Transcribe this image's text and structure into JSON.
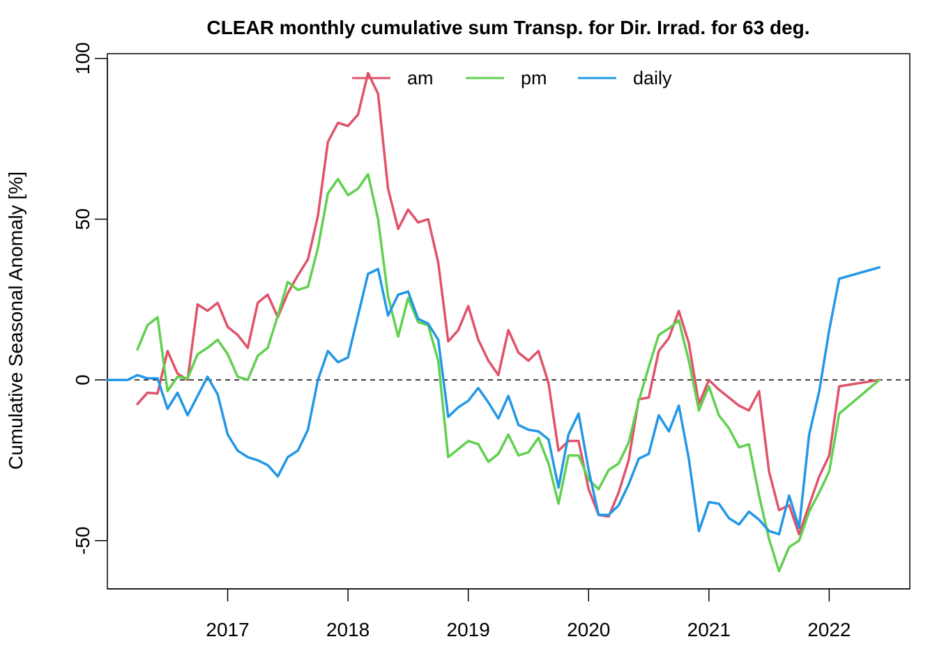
{
  "chart_data": {
    "type": "line",
    "title": "CLEAR monthly cumulative sum  Transp. for Dir. Irrad. for 63 deg.",
    "xlabel": "",
    "ylabel": "Cumulative Seasonal Anomaly [%]",
    "xlim": [
      2016.0,
      2022.67
    ],
    "ylim": [
      -65,
      101.5
    ],
    "x_ticks": [
      2017,
      2018,
      2019,
      2020,
      2021,
      2022
    ],
    "y_ticks": [
      -50,
      0,
      50,
      100
    ],
    "y_tick_labels": [
      "-50",
      "0",
      "50",
      "100"
    ],
    "reference_line": 0,
    "grid": false,
    "legend_position": "top",
    "series": [
      {
        "name": "am",
        "color": "#DF536B",
        "x": [
          2016.25,
          2016.333,
          2016.417,
          2016.5,
          2016.583,
          2016.667,
          2016.75,
          2016.833,
          2016.917,
          2017.0,
          2017.083,
          2017.167,
          2017.25,
          2017.333,
          2017.417,
          2017.5,
          2017.583,
          2017.667,
          2017.75,
          2017.833,
          2017.917,
          2018.0,
          2018.083,
          2018.167,
          2018.25,
          2018.333,
          2018.417,
          2018.5,
          2018.583,
          2018.667,
          2018.75,
          2018.833,
          2018.917,
          2019.0,
          2019.083,
          2019.167,
          2019.25,
          2019.333,
          2019.417,
          2019.5,
          2019.583,
          2019.667,
          2019.75,
          2019.833,
          2019.917,
          2020.0,
          2020.083,
          2020.167,
          2020.25,
          2020.333,
          2020.417,
          2020.5,
          2020.583,
          2020.667,
          2020.75,
          2020.833,
          2020.917,
          2021.0,
          2021.083,
          2021.167,
          2021.25,
          2021.333,
          2021.417,
          2021.5,
          2021.583,
          2021.667,
          2021.75,
          2021.833,
          2021.917,
          2022.0,
          2022.083,
          2022.417
        ],
        "y": [
          -7.5,
          -4,
          -4.2,
          9,
          2,
          0,
          23.5,
          21.5,
          24,
          16.5,
          14,
          10,
          24,
          26.5,
          19.5,
          27,
          32.5,
          37.5,
          51,
          74,
          80,
          79,
          82.5,
          95.5,
          89,
          59.5,
          47,
          53,
          49,
          50,
          36.5,
          12,
          15.5,
          23,
          12.5,
          6,
          1.5,
          15.5,
          8.5,
          6,
          9,
          -1,
          -22,
          -19,
          -19,
          -34,
          -42,
          -42.5,
          -35,
          -25,
          -6,
          -5.5,
          9,
          13,
          21.5,
          11.5,
          -7.5,
          0,
          -3,
          -5.5,
          -8,
          -9.5,
          -3.5,
          -28.5,
          -40.5,
          -39,
          -48,
          -39,
          -30,
          -23.5,
          -2,
          0
        ]
      },
      {
        "name": "pm",
        "color": "#61D04F",
        "x": [
          2016.25,
          2016.333,
          2016.417,
          2016.5,
          2016.583,
          2016.667,
          2016.75,
          2016.833,
          2016.917,
          2017.0,
          2017.083,
          2017.167,
          2017.25,
          2017.333,
          2017.417,
          2017.5,
          2017.583,
          2017.667,
          2017.75,
          2017.833,
          2017.917,
          2018.0,
          2018.083,
          2018.167,
          2018.25,
          2018.333,
          2018.417,
          2018.5,
          2018.583,
          2018.667,
          2018.75,
          2018.833,
          2018.917,
          2019.0,
          2019.083,
          2019.167,
          2019.25,
          2019.333,
          2019.417,
          2019.5,
          2019.583,
          2019.667,
          2019.75,
          2019.833,
          2019.917,
          2020.0,
          2020.083,
          2020.167,
          2020.25,
          2020.333,
          2020.417,
          2020.5,
          2020.583,
          2020.667,
          2020.75,
          2020.833,
          2020.917,
          2021.0,
          2021.083,
          2021.167,
          2021.25,
          2021.333,
          2021.417,
          2021.5,
          2021.583,
          2021.667,
          2021.75,
          2021.833,
          2021.917,
          2022.0,
          2022.083,
          2022.417
        ],
        "y": [
          9.5,
          17,
          19.5,
          -3.5,
          1,
          0.5,
          8,
          10,
          12.5,
          8,
          1,
          0,
          7.5,
          10,
          20,
          30.5,
          28,
          29,
          41,
          58,
          62.5,
          57.5,
          59.5,
          64,
          50,
          26,
          13.5,
          25.5,
          18,
          17,
          6,
          -24,
          -21.5,
          -19,
          -20,
          -25.5,
          -23,
          -17,
          -23.5,
          -22.5,
          -18,
          -26,
          -38.5,
          -23.5,
          -23.5,
          -31,
          -34,
          -28,
          -26,
          -19.5,
          -6.5,
          4,
          14,
          16,
          18.5,
          6,
          -9.5,
          -2,
          -11,
          -15,
          -21,
          -20,
          -36,
          -49.5,
          -59.5,
          -52,
          -50,
          -41,
          -35,
          -28.5,
          -10.5,
          0
        ]
      },
      {
        "name": "daily",
        "color": "#2297E6",
        "x": [
          2016.0,
          2016.083,
          2016.167,
          2016.25,
          2016.333,
          2016.417,
          2016.5,
          2016.583,
          2016.667,
          2016.75,
          2016.833,
          2016.917,
          2017.0,
          2017.083,
          2017.167,
          2017.25,
          2017.333,
          2017.417,
          2017.5,
          2017.583,
          2017.667,
          2017.75,
          2017.833,
          2017.917,
          2018.0,
          2018.083,
          2018.167,
          2018.25,
          2018.333,
          2018.417,
          2018.5,
          2018.583,
          2018.667,
          2018.75,
          2018.833,
          2018.917,
          2019.0,
          2019.083,
          2019.167,
          2019.25,
          2019.333,
          2019.417,
          2019.5,
          2019.583,
          2019.667,
          2019.75,
          2019.833,
          2019.917,
          2020.0,
          2020.083,
          2020.167,
          2020.25,
          2020.333,
          2020.417,
          2020.5,
          2020.583,
          2020.667,
          2020.75,
          2020.833,
          2020.917,
          2021.0,
          2021.083,
          2021.167,
          2021.25,
          2021.333,
          2021.417,
          2021.5,
          2021.583,
          2021.667,
          2021.75,
          2021.833,
          2021.917,
          2022.0,
          2022.083,
          2022.417
        ],
        "y": [
          0,
          0,
          0,
          1.5,
          0.5,
          0.5,
          -9,
          -4,
          -11,
          -5,
          1,
          -4.5,
          -17,
          -22,
          -24,
          -25,
          -26.5,
          -30,
          -24,
          -22,
          -15.5,
          0,
          9,
          5.5,
          7,
          20,
          33,
          34.5,
          20,
          26.5,
          27.5,
          19,
          17.5,
          12.5,
          -11.5,
          -8.5,
          -6.5,
          -2.5,
          -7,
          -12,
          -5,
          -14,
          -15.5,
          -16,
          -18.5,
          -33.5,
          -17,
          -10.5,
          -28,
          -42,
          -42,
          -39,
          -32.5,
          -24.5,
          -23,
          -11,
          -16,
          -8,
          -24.5,
          -47,
          -38,
          -38.5,
          -43,
          -45,
          -41,
          -43.5,
          -47,
          -48,
          -36,
          -46,
          -17,
          -3.5,
          15.5,
          31.5,
          35
        ]
      }
    ]
  }
}
